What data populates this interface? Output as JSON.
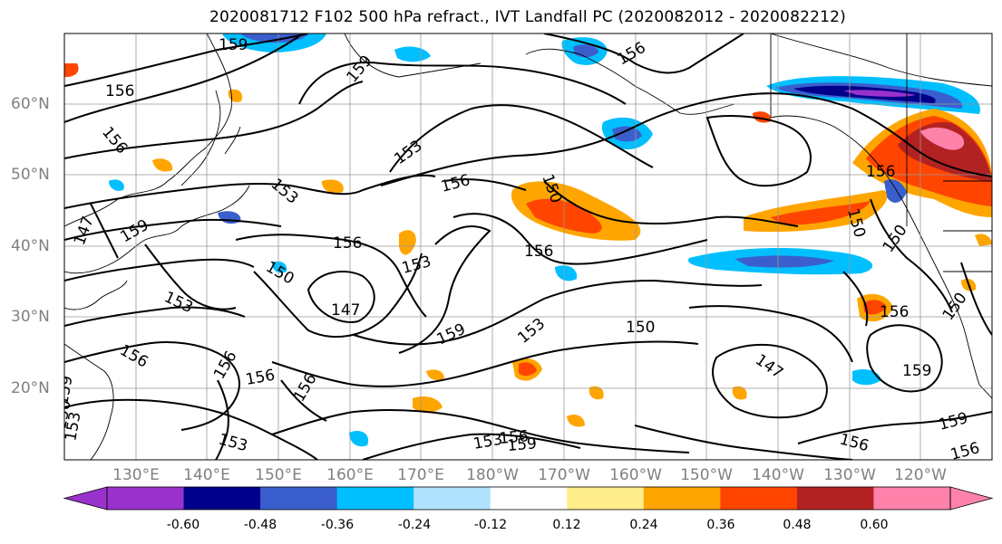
{
  "title": "2020081712 F102 500 hPa refract., IVT Landfall PC (2020082012 - 2020082212)",
  "lat_labels": [
    "60°N",
    "50°N",
    "40°N",
    "30°N",
    "20°N"
  ],
  "lon_labels": [
    "130°E",
    "140°E",
    "150°E",
    "160°E",
    "170°E",
    "180°W",
    "170°W",
    "160°W",
    "150°W",
    "140°W",
    "130°W",
    "120°W"
  ],
  "colorbar": {
    "tick_labels": [
      "-0.60",
      "-0.48",
      "-0.36",
      "-0.24",
      "-0.12",
      "0.12",
      "0.24",
      "0.36",
      "0.48",
      "0.60"
    ],
    "colors": [
      "#9932cc",
      "#00008b",
      "#3a5fcd",
      "#00bfff",
      "#b0e2ff",
      "#ffffff",
      "#ffec8b",
      "#ffa500",
      "#ff4500",
      "#b22222",
      "#ff82ab"
    ]
  },
  "contour_labels": [
    "159",
    "156",
    "156",
    "159",
    "153",
    "153",
    "156",
    "150",
    "147",
    "159",
    "156",
    "150",
    "153",
    "147",
    "159",
    "153",
    "150",
    "156",
    "153",
    "156",
    "156",
    "153",
    "156",
    "153",
    "156",
    "159",
    "150",
    "147",
    "156",
    "159",
    "159",
    "156",
    "156",
    "150",
    "150",
    "156",
    "156",
    "150",
    "153",
    "159",
    "156"
  ]
}
